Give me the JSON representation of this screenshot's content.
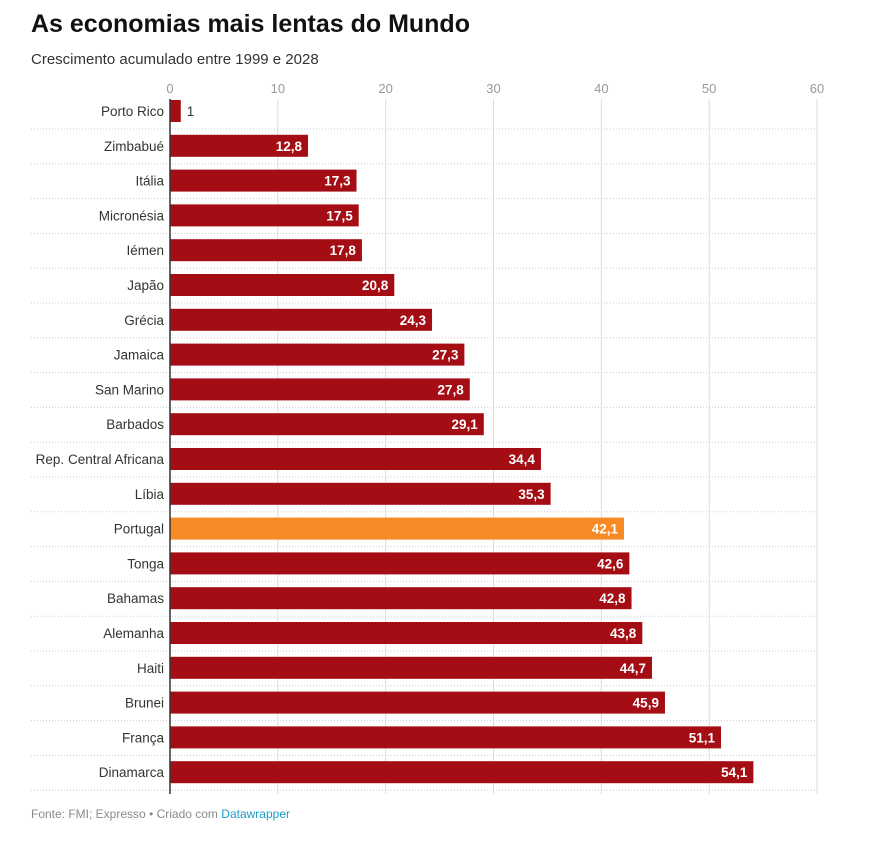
{
  "header": {
    "title": "As economias mais lentas do Mundo",
    "subtitle": "Crescimento acumulado entre 1999 e 2028"
  },
  "footer": {
    "source": "Fonte: FMI; Expresso • Criado com",
    "link": "Datawrapper"
  },
  "colors": {
    "bar": "#a50d14",
    "highlight": "#f68a24",
    "grid": "#dddddd",
    "label_text": "#ffffff"
  },
  "chart_data": {
    "type": "bar",
    "orientation": "horizontal",
    "title": "As economias mais lentas do Mundo",
    "subtitle": "Crescimento acumulado entre 1999 e 2028",
    "xlim": [
      0,
      60
    ],
    "xticks": [
      0,
      10,
      20,
      30,
      40,
      50,
      60
    ],
    "grid": true,
    "highlight": "Portugal",
    "categories": [
      "Porto Rico",
      "Zimbabué",
      "Itália",
      "Micronésia",
      "Iémen",
      "Japão",
      "Grécia",
      "Jamaica",
      "San Marino",
      "Barbados",
      "Rep. Central Africana",
      "Líbia",
      "Portugal",
      "Tonga",
      "Bahamas",
      "Alemanha",
      "Haiti",
      "Brunei",
      "França",
      "Dinamarca"
    ],
    "values": [
      1,
      12.8,
      17.3,
      17.5,
      17.8,
      20.8,
      24.3,
      27.3,
      27.8,
      29.1,
      34.4,
      35.3,
      42.1,
      42.6,
      42.8,
      43.8,
      44.7,
      45.9,
      51.1,
      54.1
    ],
    "value_labels": [
      "1",
      "12,8",
      "17,3",
      "17,5",
      "17,8",
      "20,8",
      "24,3",
      "27,3",
      "27,8",
      "29,1",
      "34,4",
      "35,3",
      "42,1",
      "42,6",
      "42,8",
      "43,8",
      "44,7",
      "45,9",
      "51,1",
      "54,1"
    ]
  }
}
